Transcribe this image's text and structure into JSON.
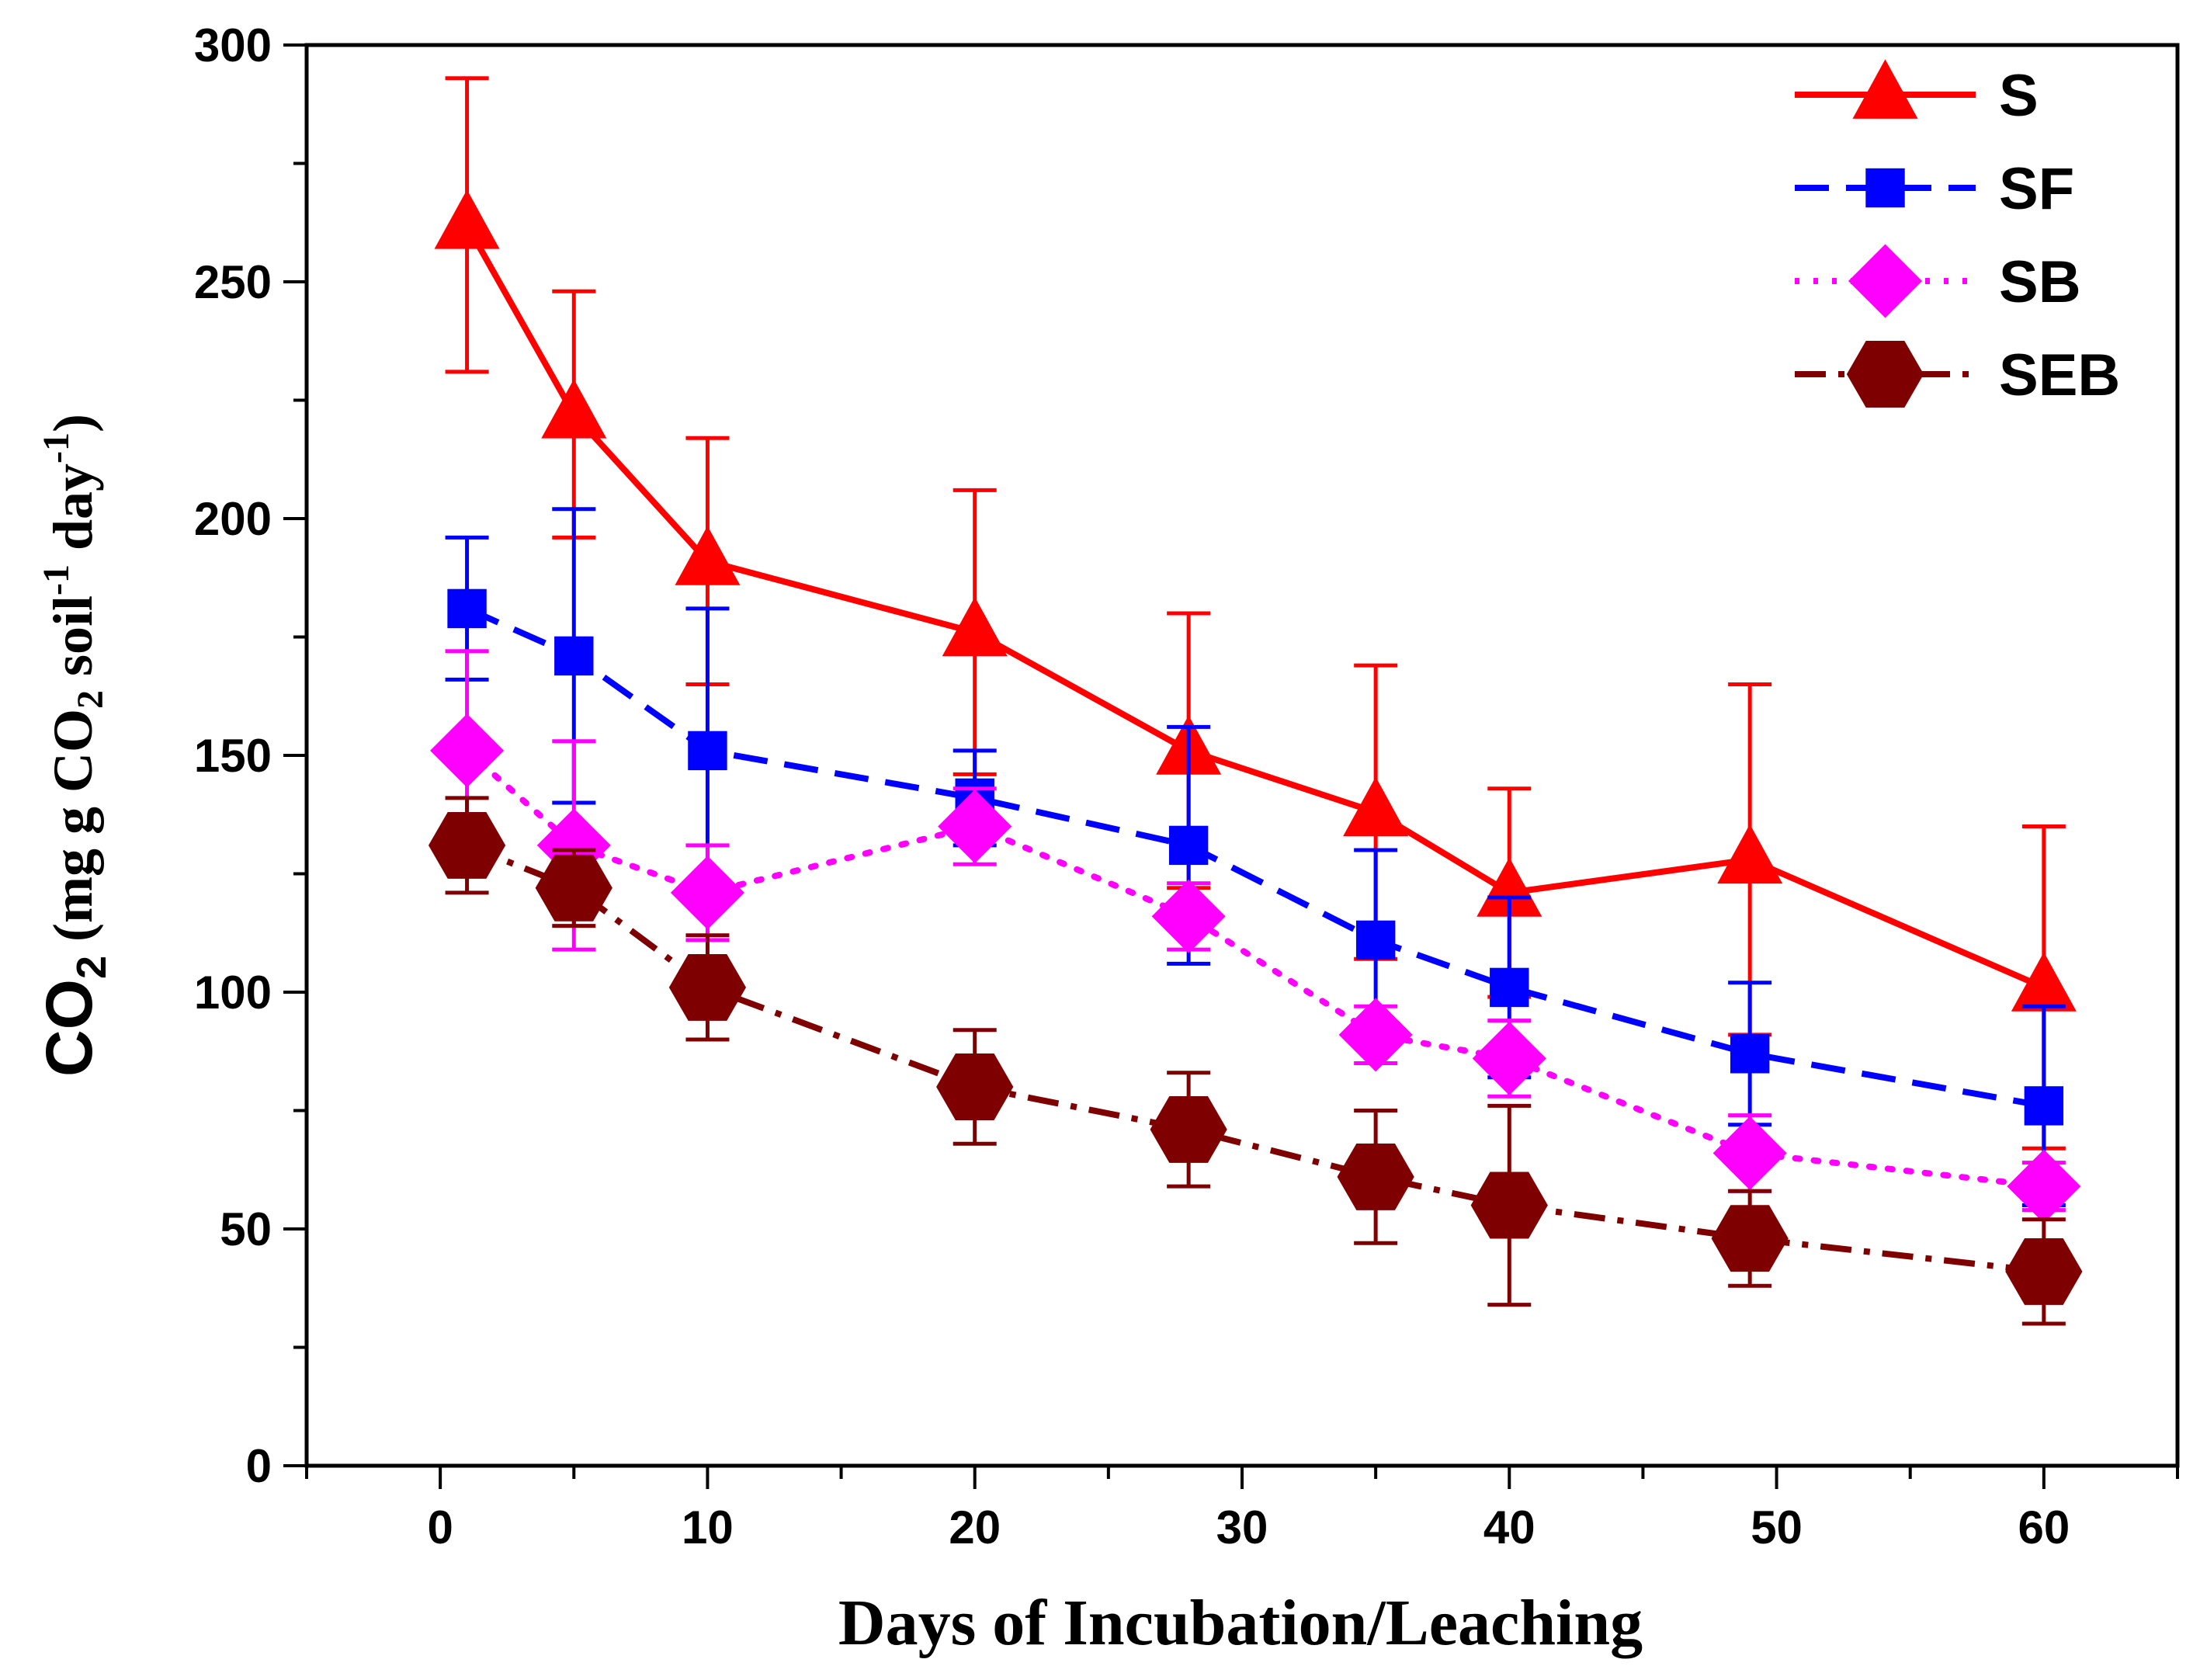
{
  "chart_data": {
    "type": "line",
    "title": "",
    "xlabel": "Days of Incubation/Leaching",
    "ylabel": {
      "parts": [
        "CO",
        "2",
        "  (mg g CO",
        "2",
        " soil",
        "-1",
        " day",
        "-1",
        ")"
      ]
    },
    "xlim": [
      -5,
      65
    ],
    "ylim": [
      0,
      300
    ],
    "xticks": [
      0,
      10,
      20,
      30,
      40,
      50,
      60
    ],
    "yticks": [
      0,
      50,
      100,
      150,
      200,
      250,
      300
    ],
    "grid": false,
    "legend_position": "top-right",
    "series": [
      {
        "name": "S",
        "color": "#ff0000",
        "marker": "triangle",
        "line_style": "solid",
        "x": [
          1,
          5,
          10,
          20,
          28,
          35,
          40,
          49,
          60
        ],
        "y": [
          262,
          222,
          191,
          176,
          151,
          138,
          121,
          128,
          101
        ],
        "error": [
          31,
          26,
          26,
          30,
          29,
          31,
          22,
          37,
          34
        ]
      },
      {
        "name": "SF",
        "color": "#0000ff",
        "marker": "square",
        "line_style": "dash",
        "x": [
          1,
          5,
          10,
          20,
          28,
          35,
          40,
          49,
          60
        ],
        "y": [
          181,
          171,
          151,
          141,
          131,
          111,
          101,
          87,
          76
        ],
        "error": [
          15,
          31,
          30,
          10,
          25,
          19,
          19,
          15,
          21
        ]
      },
      {
        "name": "SB",
        "color": "#ff00ff",
        "marker": "diamond",
        "line_style": "dot",
        "x": [
          1,
          5,
          10,
          20,
          28,
          35,
          40,
          49,
          60
        ],
        "y": [
          151,
          131,
          121,
          135,
          116,
          91,
          86,
          66,
          59
        ],
        "error": [
          21,
          22,
          10,
          8,
          7,
          6,
          8,
          8,
          5
        ]
      },
      {
        "name": "SEB",
        "color": "#7f0000",
        "marker": "hexagon",
        "line_style": "dashdot",
        "x": [
          1,
          5,
          10,
          20,
          28,
          35,
          40,
          49,
          60
        ],
        "y": [
          131,
          122,
          101,
          80,
          71,
          61,
          55,
          48,
          41
        ],
        "error": [
          10,
          8,
          11,
          12,
          12,
          14,
          21,
          10,
          11
        ]
      }
    ]
  }
}
